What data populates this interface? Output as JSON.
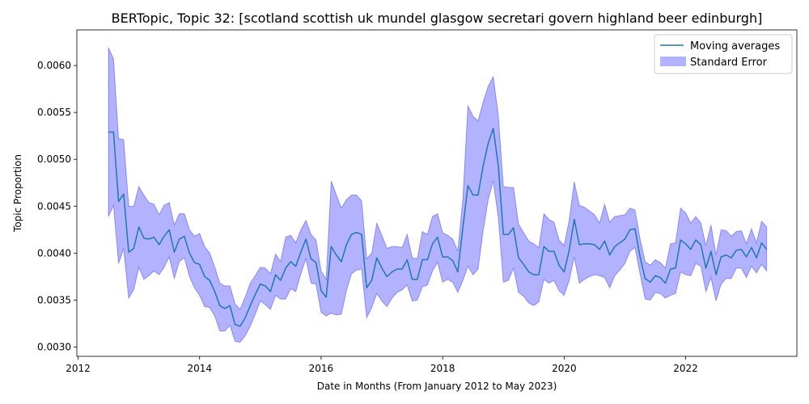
{
  "chart_data": {
    "type": "line",
    "title": "BERTopic, Topic 32: [scotland scottish uk mundel glasgow secretari govern highland beer edinburgh]",
    "xlabel": "Date in Months (From January 2012 to May 2023)",
    "ylabel": "Topic Proportion",
    "xlim": [
      2011.98,
      2023.83
    ],
    "ylim": [
      0.0029,
      0.00638
    ],
    "x_ticks": [
      2012,
      2014,
      2016,
      2018,
      2020,
      2022
    ],
    "y_ticks": [
      "0.0030",
      "0.0035",
      "0.0040",
      "0.0045",
      "0.0050",
      "0.0055",
      "0.0060"
    ],
    "y_tick_values": [
      0.003,
      0.0035,
      0.004,
      0.0045,
      0.005,
      0.0055,
      0.006
    ],
    "legend": {
      "placement": "top-right"
    },
    "grid": false,
    "x_start": 2012.5,
    "x_step": 0.08333,
    "series": [
      {
        "name": "Moving averages",
        "color": "#1f77b4",
        "values": [
          0.00529,
          0.00529,
          0.00455,
          0.00463,
          0.00401,
          0.00405,
          0.00428,
          0.00416,
          0.00415,
          0.00417,
          0.00409,
          0.00418,
          0.00425,
          0.00401,
          0.00415,
          0.00418,
          0.004,
          0.0039,
          0.00388,
          0.00375,
          0.00371,
          0.00359,
          0.00344,
          0.00341,
          0.00344,
          0.00324,
          0.00322,
          0.00331,
          0.00344,
          0.00356,
          0.00367,
          0.00365,
          0.00359,
          0.00377,
          0.00371,
          0.00384,
          0.00391,
          0.00386,
          0.00401,
          0.00415,
          0.00394,
          0.0039,
          0.0036,
          0.00353,
          0.00407,
          0.00398,
          0.00391,
          0.00409,
          0.0042,
          0.00422,
          0.0042,
          0.00363,
          0.00371,
          0.00395,
          0.00384,
          0.00375,
          0.0038,
          0.00383,
          0.00383,
          0.00393,
          0.00372,
          0.00372,
          0.00393,
          0.00393,
          0.0041,
          0.00417,
          0.00396,
          0.00396,
          0.00392,
          0.0038,
          0.00427,
          0.00472,
          0.00462,
          0.00462,
          0.00493,
          0.00517,
          0.00533,
          0.00493,
          0.0042,
          0.0042,
          0.00427,
          0.00395,
          0.00388,
          0.0038,
          0.00377,
          0.00377,
          0.00407,
          0.00402,
          0.00402,
          0.00387,
          0.0038,
          0.00403,
          0.00436,
          0.00409,
          0.0041,
          0.0041,
          0.00409,
          0.00404,
          0.00413,
          0.00398,
          0.00407,
          0.00411,
          0.00415,
          0.00425,
          0.00426,
          0.00396,
          0.00373,
          0.00369,
          0.00376,
          0.00374,
          0.00368,
          0.00383,
          0.00384,
          0.00414,
          0.0041,
          0.00404,
          0.00414,
          0.00409,
          0.00384,
          0.00402,
          0.00377,
          0.00396,
          0.00398,
          0.00395,
          0.00403,
          0.00404,
          0.00396,
          0.00406,
          0.00395,
          0.00411,
          0.00404
        ]
      },
      {
        "name": "Standard Error",
        "color": "#0000ff",
        "upper": [
          0.00619,
          0.00607,
          0.00522,
          0.00521,
          0.0045,
          0.0045,
          0.00471,
          0.00462,
          0.00454,
          0.00452,
          0.00441,
          0.00451,
          0.00454,
          0.0043,
          0.00442,
          0.00442,
          0.00425,
          0.00418,
          0.00421,
          0.00407,
          0.004,
          0.00385,
          0.00368,
          0.00365,
          0.00365,
          0.00346,
          0.0034,
          0.00353,
          0.00368,
          0.00376,
          0.00385,
          0.00384,
          0.00378,
          0.00399,
          0.00391,
          0.00417,
          0.00419,
          0.00411,
          0.00425,
          0.00435,
          0.0042,
          0.00414,
          0.00381,
          0.00372,
          0.00477,
          0.00462,
          0.00448,
          0.00457,
          0.00462,
          0.00462,
          0.00456,
          0.00394,
          0.004,
          0.00432,
          0.00419,
          0.00405,
          0.00407,
          0.00407,
          0.00406,
          0.0042,
          0.00395,
          0.00394,
          0.00423,
          0.0042,
          0.00439,
          0.00442,
          0.00422,
          0.00419,
          0.00415,
          0.00402,
          0.00458,
          0.00557,
          0.00546,
          0.00541,
          0.00561,
          0.00578,
          0.00588,
          0.00547,
          0.00471,
          0.0047,
          0.0047,
          0.00431,
          0.00422,
          0.00413,
          0.0041,
          0.00406,
          0.00442,
          0.00436,
          0.00433,
          0.00414,
          0.00408,
          0.00435,
          0.00476,
          0.00451,
          0.00449,
          0.00445,
          0.00441,
          0.00432,
          0.00452,
          0.00433,
          0.00439,
          0.0044,
          0.00441,
          0.00448,
          0.00446,
          0.00415,
          0.00391,
          0.00387,
          0.00393,
          0.0039,
          0.00384,
          0.0041,
          0.00411,
          0.00448,
          0.00443,
          0.00432,
          0.00439,
          0.00432,
          0.00408,
          0.0043,
          0.00398,
          0.00425,
          0.00424,
          0.00418,
          0.00423,
          0.00424,
          0.0041,
          0.00426,
          0.00411,
          0.00434,
          0.00428
        ],
        "lower": [
          0.00439,
          0.00451,
          0.00389,
          0.00405,
          0.00352,
          0.00361,
          0.00385,
          0.00372,
          0.00376,
          0.00381,
          0.00377,
          0.00385,
          0.00396,
          0.00373,
          0.00391,
          0.00395,
          0.00375,
          0.00363,
          0.00355,
          0.00343,
          0.00342,
          0.00333,
          0.00317,
          0.00317,
          0.00323,
          0.00306,
          0.00305,
          0.00312,
          0.00322,
          0.00335,
          0.00349,
          0.00345,
          0.0034,
          0.00355,
          0.00351,
          0.00351,
          0.00362,
          0.00359,
          0.00378,
          0.00394,
          0.00368,
          0.00367,
          0.00337,
          0.00333,
          0.00336,
          0.00334,
          0.00335,
          0.0036,
          0.00378,
          0.00382,
          0.00383,
          0.00331,
          0.00342,
          0.00357,
          0.00349,
          0.00343,
          0.00352,
          0.00358,
          0.00361,
          0.00366,
          0.00349,
          0.0035,
          0.00364,
          0.00366,
          0.00381,
          0.0039,
          0.00369,
          0.00372,
          0.00369,
          0.00358,
          0.00371,
          0.00386,
          0.00377,
          0.00383,
          0.00424,
          0.00457,
          0.00477,
          0.00438,
          0.00369,
          0.00371,
          0.00384,
          0.00358,
          0.00354,
          0.00347,
          0.00344,
          0.00348,
          0.00372,
          0.00368,
          0.00371,
          0.0036,
          0.00355,
          0.00371,
          0.00396,
          0.00368,
          0.00372,
          0.00375,
          0.00377,
          0.00376,
          0.00374,
          0.00363,
          0.00376,
          0.00382,
          0.00389,
          0.00402,
          0.00406,
          0.00378,
          0.00351,
          0.0035,
          0.00358,
          0.00357,
          0.00352,
          0.00355,
          0.00357,
          0.0038,
          0.00377,
          0.00376,
          0.00389,
          0.00386,
          0.00359,
          0.00374,
          0.00349,
          0.00367,
          0.00373,
          0.00373,
          0.00384,
          0.00384,
          0.00374,
          0.00386,
          0.00379,
          0.00388,
          0.00381
        ]
      }
    ]
  }
}
